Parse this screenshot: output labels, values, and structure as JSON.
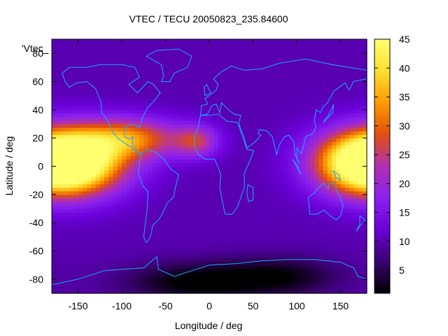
{
  "chart_data": {
    "type": "heatmap",
    "title": "VTEC / TECU 20050823_235.84600",
    "xlabel": "Longitude / deg",
    "ylabel": "Latitude / deg",
    "key_label": "'Vtec_",
    "xlim": [
      -180,
      180
    ],
    "ylim": [
      -90,
      90
    ],
    "x_ticks": [
      -150,
      -100,
      -50,
      0,
      50,
      100,
      150
    ],
    "y_ticks": [
      -80,
      -60,
      -40,
      -20,
      0,
      20,
      40,
      60,
      80
    ],
    "colorbar": {
      "min": 1,
      "max": 45,
      "ticks": [
        5,
        10,
        15,
        20,
        25,
        30,
        35,
        40,
        45
      ]
    },
    "palette": [
      "#000000",
      "#3a0070",
      "#6a00d8",
      "#8a20f0",
      "#b030b0",
      "#e05010",
      "#ff9a00",
      "#ffe030",
      "#ffff70"
    ],
    "coastline_color": "#1aa8ff",
    "field_features": [
      {
        "feature": "background",
        "value": 10
      },
      {
        "feature": "equatorial-maximum",
        "lon": -160,
        "lat": 3,
        "value": 44,
        "spread_lon": 45,
        "spread_lat": 16
      },
      {
        "feature": "equatorial-maximum",
        "lon": 180,
        "lat": 3,
        "value": 36,
        "spread_lon": 40,
        "spread_lat": 15
      },
      {
        "feature": "northern-crest",
        "lon": -90,
        "lat": 20,
        "value": 30,
        "spread_lon": 40,
        "spread_lat": 10
      },
      {
        "feature": "secondary-maximum",
        "lon": -15,
        "lat": 18,
        "value": 24,
        "spread_lon": 18,
        "spread_lat": 8
      },
      {
        "feature": "southern-low",
        "lon": -20,
        "lat": -82,
        "value": 1,
        "spread_lon": 55,
        "spread_lat": 10
      },
      {
        "feature": "southern-low",
        "lon": 80,
        "lat": -78,
        "value": 2,
        "spread_lon": 50,
        "spread_lat": 10
      }
    ]
  }
}
